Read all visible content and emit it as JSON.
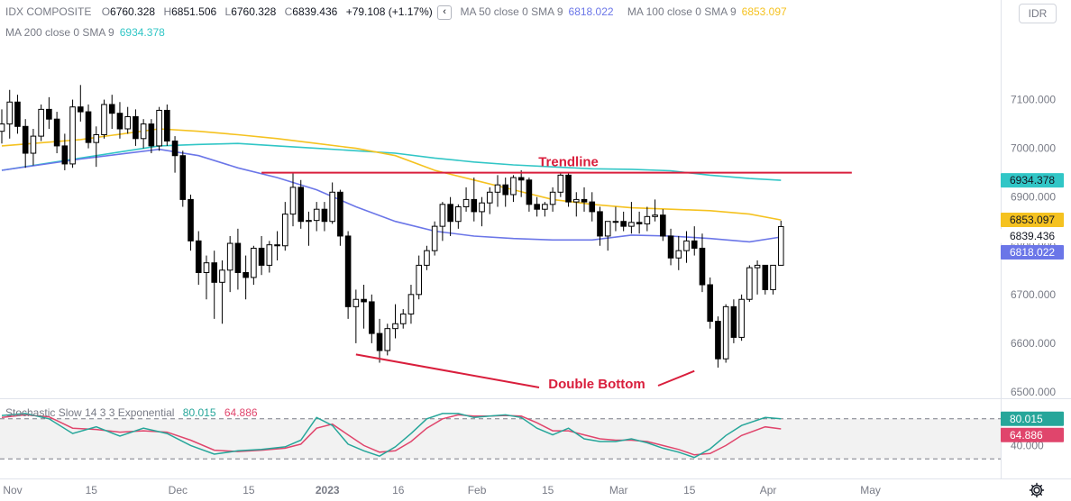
{
  "header": {
    "symbol": "IDX COMPOSITE",
    "open_label": "O",
    "open": "6760.328",
    "high_label": "H",
    "high": "6851.506",
    "low_label": "L",
    "low": "6760.328",
    "close_label": "C",
    "close": "6839.436",
    "change": "+79.108 (+1.17%)",
    "collapse_icon": "chevron-left-icon",
    "currency": "IDR"
  },
  "indicators": [
    {
      "label": "MA 50 close 0 SMA 9",
      "value": "6818.022",
      "color": "#6b76e8"
    },
    {
      "label": "MA 100 close 0 SMA 9",
      "value": "6853.097",
      "color": "#f5c220"
    },
    {
      "label": "MA 200 close 0 SMA 9",
      "value": "6934.378",
      "color": "#31c6c6"
    }
  ],
  "stochastic": {
    "label": "Stochastic Slow 14 3 3 Exponential",
    "k_value": "80.015",
    "d_value": "64.886",
    "k_color": "#26a69a",
    "d_color": "#e0456c"
  },
  "price_axis": {
    "ticks": [
      "7100.000",
      "7000.000",
      "6900.000",
      "6800.000",
      "6700.000",
      "6600.000",
      "6500.000"
    ],
    "tick_values": [
      7100,
      7000,
      6900,
      6800,
      6700,
      6600,
      6500
    ],
    "range": [
      6487,
      7212
    ],
    "tags": [
      {
        "text": "6934.378",
        "value": 6934.378,
        "bg": "#31c6c6",
        "fg": "#131722"
      },
      {
        "text": "6853.097",
        "value": 6853.097,
        "bg": "#f5c220",
        "fg": "#131722"
      },
      {
        "text": "6839.436",
        "value": 6839.436,
        "bg": "#ffffff",
        "fg": "#131722"
      },
      {
        "text": "6818.022",
        "value": 6818.022,
        "bg": "#6b76e8",
        "fg": "#ffffff"
      }
    ]
  },
  "stoch_axis": {
    "ticks": [
      "40.000"
    ],
    "tick_values": [
      40
    ],
    "range": [
      0,
      100
    ],
    "bands": [
      80,
      20
    ],
    "tags": [
      {
        "text": "80.015",
        "value": 80.015,
        "bg": "#26a69a",
        "fg": "#ffffff"
      },
      {
        "text": "64.886",
        "value": 64.886,
        "bg": "#e0456c",
        "fg": "#ffffff"
      }
    ]
  },
  "time_axis": {
    "labels": [
      {
        "text": "Nov",
        "index": 0,
        "bold": false
      },
      {
        "text": "15",
        "index": 10,
        "bold": false
      },
      {
        "text": "Dec",
        "index": 21,
        "bold": false
      },
      {
        "text": "15",
        "index": 30,
        "bold": false
      },
      {
        "text": "2023",
        "index": 40,
        "bold": true
      },
      {
        "text": "16",
        "index": 49,
        "bold": false
      },
      {
        "text": "Feb",
        "index": 59,
        "bold": false
      },
      {
        "text": "15",
        "index": 68,
        "bold": false
      },
      {
        "text": "Mar",
        "index": 77,
        "bold": false
      },
      {
        "text": "15",
        "index": 86,
        "bold": false
      },
      {
        "text": "Apr",
        "index": 96,
        "bold": false
      },
      {
        "text": "May",
        "index": 109,
        "bold": false
      }
    ]
  },
  "annotations": {
    "trendline_label": "Trendline",
    "trendline_value": 6950,
    "trendline_from_index": 33,
    "trendline_to_index": 108,
    "double_bottom_label": "Double Bottom",
    "bottom_left": {
      "index": 45,
      "value": 6577
    },
    "bottom_right": {
      "index": 88,
      "value": 6543
    },
    "color": "#d91e3c"
  },
  "chart_data": {
    "type": "candlestick",
    "title": "IDX COMPOSITE",
    "start_date": "2022-11-01",
    "series_note": "daily OHLC, trading days",
    "ohlc": [
      [
        7035,
        7080,
        7010,
        7050
      ],
      [
        7050,
        7120,
        7020,
        7095
      ],
      [
        7095,
        7110,
        7030,
        7045
      ],
      [
        7045,
        7060,
        6960,
        6990
      ],
      [
        6990,
        7040,
        6965,
        7025
      ],
      [
        7025,
        7090,
        7015,
        7080
      ],
      [
        7080,
        7105,
        7040,
        7060
      ],
      [
        7060,
        7075,
        6990,
        7005
      ],
      [
        7005,
        7030,
        6955,
        6968
      ],
      [
        6968,
        7100,
        6960,
        7085
      ],
      [
        7085,
        7130,
        7055,
        7075
      ],
      [
        7075,
        7090,
        7000,
        7012
      ],
      [
        7012,
        7045,
        6962,
        7028
      ],
      [
        7028,
        7100,
        7020,
        7090
      ],
      [
        7090,
        7110,
        7040,
        7072
      ],
      [
        7072,
        7095,
        7020,
        7040
      ],
      [
        7040,
        7085,
        7030,
        7065
      ],
      [
        7065,
        7080,
        7005,
        7020
      ],
      [
        7020,
        7060,
        7000,
        7050
      ],
      [
        7050,
        7060,
        6990,
        7005
      ],
      [
        7005,
        7085,
        6995,
        7078
      ],
      [
        7078,
        7090,
        7005,
        7015
      ],
      [
        7015,
        7025,
        6950,
        6985
      ],
      [
        6985,
        6995,
        6880,
        6895
      ],
      [
        6895,
        6905,
        6790,
        6810
      ],
      [
        6810,
        6830,
        6720,
        6745
      ],
      [
        6745,
        6780,
        6690,
        6765
      ],
      [
        6765,
        6790,
        6650,
        6725
      ],
      [
        6725,
        6770,
        6640,
        6750
      ],
      [
        6750,
        6820,
        6705,
        6805
      ],
      [
        6805,
        6835,
        6710,
        6745
      ],
      [
        6745,
        6780,
        6690,
        6735
      ],
      [
        6735,
        6800,
        6720,
        6795
      ],
      [
        6795,
        6820,
        6740,
        6760
      ],
      [
        6760,
        6810,
        6745,
        6802
      ],
      [
        6802,
        6830,
        6770,
        6800
      ],
      [
        6800,
        6890,
        6790,
        6865
      ],
      [
        6865,
        6950,
        6840,
        6920
      ],
      [
        6920,
        6935,
        6835,
        6850
      ],
      [
        6850,
        6870,
        6800,
        6852
      ],
      [
        6852,
        6890,
        6830,
        6875
      ],
      [
        6875,
        6890,
        6830,
        6850
      ],
      [
        6850,
        6930,
        6845,
        6910
      ],
      [
        6910,
        6915,
        6800,
        6820
      ],
      [
        6820,
        6830,
        6650,
        6675
      ],
      [
        6675,
        6710,
        6600,
        6690
      ],
      [
        6690,
        6720,
        6630,
        6685
      ],
      [
        6685,
        6700,
        6600,
        6620
      ],
      [
        6620,
        6650,
        6560,
        6585
      ],
      [
        6585,
        6640,
        6575,
        6630
      ],
      [
        6630,
        6680,
        6610,
        6640
      ],
      [
        6640,
        6670,
        6630,
        6660
      ],
      [
        6660,
        6720,
        6640,
        6700
      ],
      [
        6700,
        6780,
        6690,
        6760
      ],
      [
        6760,
        6800,
        6750,
        6790
      ],
      [
        6790,
        6850,
        6780,
        6840
      ],
      [
        6840,
        6890,
        6810,
        6885
      ],
      [
        6885,
        6900,
        6820,
        6850
      ],
      [
        6850,
        6885,
        6835,
        6880
      ],
      [
        6880,
        6920,
        6870,
        6895
      ],
      [
        6895,
        6940,
        6850,
        6870
      ],
      [
        6870,
        6900,
        6840,
        6888
      ],
      [
        6888,
        6920,
        6865,
        6910
      ],
      [
        6910,
        6945,
        6880,
        6925
      ],
      [
        6925,
        6940,
        6880,
        6905
      ],
      [
        6905,
        6945,
        6890,
        6940
      ],
      [
        6940,
        6955,
        6900,
        6935
      ],
      [
        6935,
        6940,
        6870,
        6885
      ],
      [
        6885,
        6900,
        6860,
        6875
      ],
      [
        6875,
        6890,
        6860,
        6885
      ],
      [
        6885,
        6920,
        6870,
        6910
      ],
      [
        6910,
        6950,
        6900,
        6945
      ],
      [
        6945,
        6950,
        6880,
        6890
      ],
      [
        6890,
        6910,
        6860,
        6895
      ],
      [
        6895,
        6920,
        6870,
        6890
      ],
      [
        6890,
        6910,
        6850,
        6870
      ],
      [
        6870,
        6880,
        6800,
        6820
      ],
      [
        6820,
        6850,
        6790,
        6850
      ],
      [
        6850,
        6880,
        6830,
        6850
      ],
      [
        6850,
        6870,
        6830,
        6840
      ],
      [
        6840,
        6890,
        6825,
        6848
      ],
      [
        6848,
        6870,
        6825,
        6845
      ],
      [
        6845,
        6880,
        6830,
        6860
      ],
      [
        6860,
        6895,
        6850,
        6863
      ],
      [
        6863,
        6875,
        6810,
        6820
      ],
      [
        6820,
        6835,
        6760,
        6775
      ],
      [
        6775,
        6820,
        6750,
        6790
      ],
      [
        6790,
        6830,
        6765,
        6810
      ],
      [
        6810,
        6840,
        6780,
        6795
      ],
      [
        6795,
        6825,
        6705,
        6720
      ],
      [
        6720,
        6735,
        6630,
        6645
      ],
      [
        6645,
        6655,
        6550,
        6568
      ],
      [
        6568,
        6680,
        6560,
        6675
      ],
      [
        6675,
        6690,
        6600,
        6612
      ],
      [
        6612,
        6700,
        6605,
        6690
      ],
      [
        6690,
        6760,
        6685,
        6755
      ],
      [
        6755,
        6770,
        6700,
        6760
      ],
      [
        6760,
        6760,
        6700,
        6710
      ],
      [
        6710,
        6760,
        6700,
        6760
      ],
      [
        6760,
        6851.506,
        6760,
        6839.436
      ]
    ],
    "ma50": [
      [
        0,
        6955
      ],
      [
        10,
        6978
      ],
      [
        20,
        6998
      ],
      [
        25,
        6985
      ],
      [
        30,
        6960
      ],
      [
        35,
        6940
      ],
      [
        40,
        6915
      ],
      [
        45,
        6880
      ],
      [
        50,
        6850
      ],
      [
        55,
        6830
      ],
      [
        60,
        6820
      ],
      [
        65,
        6815
      ],
      [
        70,
        6812
      ],
      [
        75,
        6812
      ],
      [
        80,
        6822
      ],
      [
        85,
        6820
      ],
      [
        90,
        6815
      ],
      [
        95,
        6808
      ],
      [
        99,
        6818.022
      ]
    ],
    "ma100": [
      [
        0,
        7005
      ],
      [
        10,
        7018
      ],
      [
        20,
        7040
      ],
      [
        25,
        7035
      ],
      [
        30,
        7028
      ],
      [
        35,
        7020
      ],
      [
        40,
        7010
      ],
      [
        45,
        7000
      ],
      [
        50,
        6985
      ],
      [
        55,
        6955
      ],
      [
        60,
        6935
      ],
      [
        65,
        6915
      ],
      [
        70,
        6895
      ],
      [
        75,
        6885
      ],
      [
        80,
        6878
      ],
      [
        85,
        6875
      ],
      [
        90,
        6872
      ],
      [
        95,
        6865
      ],
      [
        99,
        6853.097
      ]
    ],
    "ma200": [
      [
        0,
        6955
      ],
      [
        10,
        6980
      ],
      [
        20,
        7005
      ],
      [
        25,
        7008
      ],
      [
        30,
        7010
      ],
      [
        35,
        7005
      ],
      [
        40,
        7000
      ],
      [
        45,
        6995
      ],
      [
        50,
        6990
      ],
      [
        55,
        6980
      ],
      [
        60,
        6972
      ],
      [
        65,
        6966
      ],
      [
        70,
        6962
      ],
      [
        75,
        6958
      ],
      [
        80,
        6957
      ],
      [
        85,
        6954
      ],
      [
        90,
        6945
      ],
      [
        95,
        6938
      ],
      [
        99,
        6934.378
      ]
    ],
    "stoch_k": [
      [
        0,
        85
      ],
      [
        3,
        88
      ],
      [
        6,
        80
      ],
      [
        9,
        58
      ],
      [
        12,
        68
      ],
      [
        15,
        54
      ],
      [
        18,
        66
      ],
      [
        21,
        58
      ],
      [
        24,
        40
      ],
      [
        27,
        27
      ],
      [
        30,
        32
      ],
      [
        33,
        34
      ],
      [
        36,
        38
      ],
      [
        38,
        48
      ],
      [
        40,
        82
      ],
      [
        42,
        70
      ],
      [
        44,
        42
      ],
      [
        46,
        32
      ],
      [
        48,
        24
      ],
      [
        50,
        38
      ],
      [
        52,
        58
      ],
      [
        54,
        80
      ],
      [
        56,
        88
      ],
      [
        58,
        88
      ],
      [
        60,
        82
      ],
      [
        62,
        84
      ],
      [
        64,
        86
      ],
      [
        66,
        82
      ],
      [
        68,
        66
      ],
      [
        70,
        56
      ],
      [
        72,
        66
      ],
      [
        74,
        50
      ],
      [
        76,
        46
      ],
      [
        78,
        46
      ],
      [
        80,
        50
      ],
      [
        82,
        44
      ],
      [
        84,
        36
      ],
      [
        86,
        30
      ],
      [
        88,
        22
      ],
      [
        90,
        35
      ],
      [
        92,
        55
      ],
      [
        94,
        70
      ],
      [
        97,
        82
      ],
      [
        99,
        80.015
      ]
    ],
    "stoch_d": [
      [
        0,
        82
      ],
      [
        3,
        86
      ],
      [
        6,
        83
      ],
      [
        9,
        66
      ],
      [
        12,
        64
      ],
      [
        15,
        60
      ],
      [
        18,
        62
      ],
      [
        21,
        60
      ],
      [
        24,
        48
      ],
      [
        27,
        33
      ],
      [
        30,
        31
      ],
      [
        33,
        33
      ],
      [
        36,
        36
      ],
      [
        38,
        42
      ],
      [
        40,
        66
      ],
      [
        42,
        72
      ],
      [
        44,
        56
      ],
      [
        46,
        40
      ],
      [
        48,
        30
      ],
      [
        50,
        32
      ],
      [
        52,
        46
      ],
      [
        54,
        66
      ],
      [
        56,
        80
      ],
      [
        58,
        86
      ],
      [
        60,
        84
      ],
      [
        62,
        84
      ],
      [
        64,
        85
      ],
      [
        66,
        84
      ],
      [
        68,
        74
      ],
      [
        70,
        62
      ],
      [
        72,
        62
      ],
      [
        74,
        56
      ],
      [
        76,
        50
      ],
      [
        78,
        48
      ],
      [
        80,
        48
      ],
      [
        82,
        46
      ],
      [
        84,
        40
      ],
      [
        86,
        34
      ],
      [
        88,
        26
      ],
      [
        90,
        28
      ],
      [
        92,
        40
      ],
      [
        94,
        55
      ],
      [
        97,
        68
      ],
      [
        99,
        64.886
      ]
    ]
  }
}
